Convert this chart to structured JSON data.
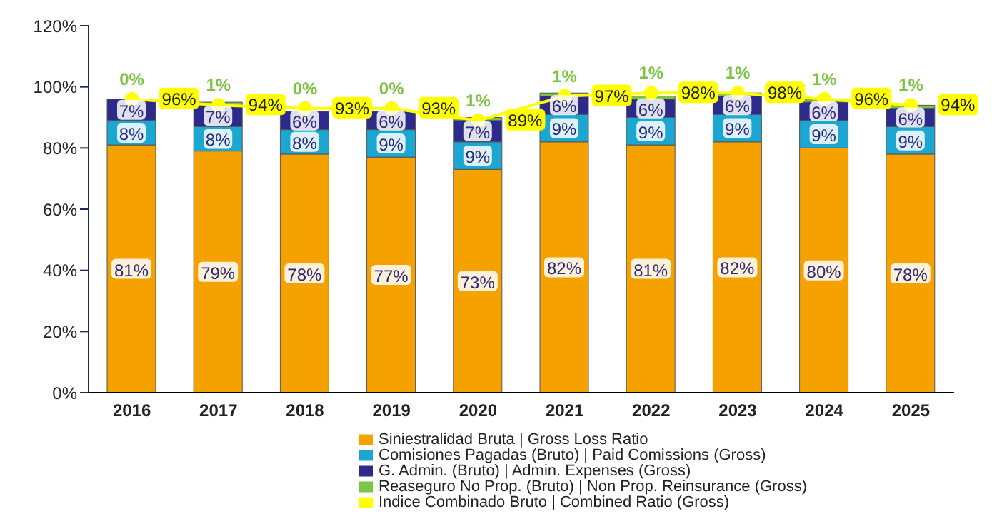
{
  "chart_data": {
    "type": "bar",
    "stacked": true,
    "categories": [
      "2016",
      "2017",
      "2018",
      "2019",
      "2020",
      "2021",
      "2022",
      "2023",
      "2024",
      "2025"
    ],
    "series": [
      {
        "name": "Siniestralidad Bruta | Gross Loss Ratio",
        "color": "#f5a200",
        "values": [
          81,
          79,
          78,
          77,
          73,
          82,
          81,
          82,
          80,
          78
        ],
        "value_labels": [
          "81%",
          "79%",
          "78%",
          "77%",
          "73%",
          "82%",
          "81%",
          "82%",
          "80%",
          "78%"
        ]
      },
      {
        "name": "Comisiones Pagadas (Bruto) | Paid Comissions (Gross)",
        "color": "#1ba7d2",
        "values": [
          8,
          8,
          8,
          9,
          9,
          9,
          9,
          9,
          9,
          9
        ],
        "value_labels": [
          "8%",
          "8%",
          "8%",
          "9%",
          "9%",
          "9%",
          "9%",
          "9%",
          "9%",
          "9%"
        ]
      },
      {
        "name": "G. Admin. (Bruto) | Admin. Expenses (Gross)",
        "color": "#2e2a8c",
        "values": [
          7,
          7,
          6,
          6,
          7,
          6,
          6,
          6,
          6,
          6
        ],
        "value_labels": [
          "7%",
          "7%",
          "6%",
          "6%",
          "7%",
          "6%",
          "6%",
          "6%",
          "6%",
          "6%"
        ]
      },
      {
        "name": "Reaseguro No Prop. (Bruto) | Non Prop. Reinsurance (Gross)",
        "color": "#7cc444",
        "values": [
          0,
          1,
          0,
          0,
          1,
          1,
          1,
          1,
          1,
          1
        ],
        "value_labels": [
          "0%",
          "1%",
          "0%",
          "0%",
          "1%",
          "1%",
          "1%",
          "1%",
          "1%",
          "1%"
        ]
      },
      {
        "name": "Indice Combinado Bruto | Combined Ratio (Gross)",
        "type": "line",
        "color": "#ffff00",
        "marker": "circle",
        "values": [
          96,
          94,
          93,
          93,
          89,
          97,
          98,
          98,
          96,
          94
        ],
        "value_labels": [
          "96%",
          "94%",
          "93%",
          "93%",
          "89%",
          "97%",
          "98%",
          "98%",
          "96%",
          "94%"
        ]
      }
    ],
    "ylim": [
      0,
      120
    ],
    "yticks": [
      {
        "value": 0,
        "label": "0%"
      },
      {
        "value": 20,
        "label": "20%"
      },
      {
        "value": 40,
        "label": "40%"
      },
      {
        "value": 60,
        "label": "60%"
      },
      {
        "value": 80,
        "label": "80%"
      },
      {
        "value": 100,
        "label": "100%"
      },
      {
        "value": 120,
        "label": "120%"
      }
    ],
    "grid": false,
    "legend": "bottom"
  }
}
